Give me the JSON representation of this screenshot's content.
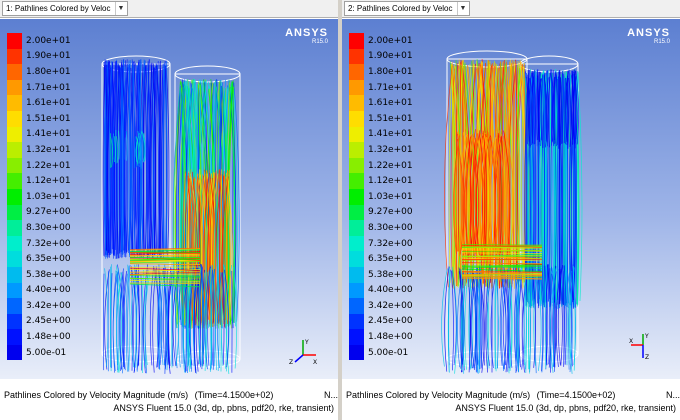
{
  "panes": [
    {
      "window_title": "1: Pathlines Colored by Veloc",
      "footer_title": "Pathlines Colored by Velocity Magnitude (m/s)",
      "footer_time": "(Time=4.1500e+02)",
      "footer_more": "N...",
      "footer_solver": "ANSYS Fluent 15.0 (3d, dp, pbns, pdf20, rke, transient)",
      "brand_name": "ANSYS",
      "brand_version": "R15.0"
    },
    {
      "window_title": "2: Pathlines Colored by Veloc",
      "footer_title": "Pathlines Colored by Velocity Magnitude (m/s)",
      "footer_time": "(Time=4.1500e+02)",
      "footer_more": "N...",
      "footer_solver": "ANSYS Fluent 15.0 (3d, dp, pbns, pdf20, rke, transient)",
      "brand_name": "ANSYS",
      "brand_version": "R15.0"
    }
  ],
  "scale_labels": [
    "2.00e+01",
    "1.90e+01",
    "1.80e+01",
    "1.71e+01",
    "1.61e+01",
    "1.51e+01",
    "1.41e+01",
    "1.32e+01",
    "1.22e+01",
    "1.12e+01",
    "1.03e+01",
    "9.27e+00",
    "8.30e+00",
    "7.32e+00",
    "6.35e+00",
    "5.38e+00",
    "4.40e+00",
    "3.42e+00",
    "2.45e+00",
    "1.48e+00",
    "5.00e-01"
  ],
  "scale_colors": [
    "#ff0000",
    "#ff3300",
    "#ff6600",
    "#ff9900",
    "#ffbb00",
    "#ffdd00",
    "#eeee00",
    "#bbee00",
    "#88ee00",
    "#44ee00",
    "#00ee00",
    "#00ee44",
    "#00ee99",
    "#00eecc",
    "#00dddd",
    "#00bbee",
    "#0099ff",
    "#0066ff",
    "#0033ff",
    "#0011ff",
    "#0000ee"
  ],
  "axis_labels": {
    "x": "X",
    "y": "Y",
    "z": "Z"
  },
  "icons": {
    "dropdown": "chevron-down-icon",
    "axes": "axes-triad-icon"
  }
}
